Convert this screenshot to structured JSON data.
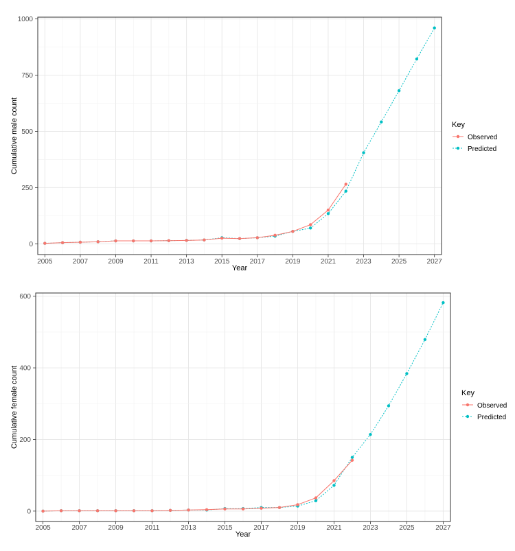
{
  "chart_data": [
    {
      "type": "line",
      "xlabel": "Year",
      "ylabel": "Cumulative male count",
      "xlim": [
        2004.6,
        2027.4
      ],
      "ylim": [
        -48,
        1008
      ],
      "x_ticks": [
        2005,
        2007,
        2009,
        2011,
        2013,
        2015,
        2017,
        2019,
        2021,
        2023,
        2025,
        2027
      ],
      "y_ticks": [
        0,
        250,
        500,
        750,
        1000
      ],
      "grid": true,
      "legend": {
        "title": "Key",
        "position": "right"
      },
      "series": [
        {
          "name": "Observed",
          "color": "#f8766d",
          "line_style": "solid",
          "x": [
            2005,
            2006,
            2007,
            2008,
            2009,
            2010,
            2011,
            2012,
            2013,
            2014,
            2015,
            2016,
            2017,
            2018,
            2019,
            2020,
            2021,
            2022
          ],
          "y": [
            2,
            5,
            7,
            9,
            13,
            13,
            13,
            14,
            15,
            17,
            25,
            23,
            27,
            38,
            55,
            85,
            150,
            265
          ]
        },
        {
          "name": "Predicted",
          "color": "#00bfc4",
          "line_style": "dotted",
          "x": [
            2005,
            2006,
            2007,
            2008,
            2009,
            2010,
            2011,
            2012,
            2013,
            2014,
            2015,
            2016,
            2017,
            2018,
            2019,
            2020,
            2021,
            2022,
            2023,
            2024,
            2025,
            2026,
            2027
          ],
          "y": [
            2,
            5,
            7,
            9,
            13,
            13,
            13,
            14,
            15,
            17,
            27,
            23,
            27,
            34,
            55,
            70,
            134,
            234,
            405,
            542,
            681,
            822,
            960
          ]
        }
      ]
    },
    {
      "type": "line",
      "xlabel": "Year",
      "ylabel": "Cumulative female count",
      "xlim": [
        2004.6,
        2027.4
      ],
      "ylim": [
        -29,
        609
      ],
      "x_ticks": [
        2005,
        2007,
        2009,
        2011,
        2013,
        2015,
        2017,
        2019,
        2021,
        2023,
        2025,
        2027
      ],
      "y_ticks": [
        0,
        200,
        400,
        600
      ],
      "grid": true,
      "legend": {
        "title": "Key",
        "position": "right"
      },
      "series": [
        {
          "name": "Observed",
          "color": "#f8766d",
          "line_style": "solid",
          "x": [
            2005,
            2006,
            2007,
            2008,
            2009,
            2010,
            2011,
            2012,
            2013,
            2014,
            2015,
            2016,
            2017,
            2018,
            2019,
            2020,
            2021,
            2022
          ],
          "y": [
            0,
            1,
            1,
            1,
            1,
            1,
            1,
            2,
            3,
            4,
            6,
            6,
            8,
            10,
            18,
            37,
            85,
            142
          ]
        },
        {
          "name": "Predicted",
          "color": "#00bfc4",
          "line_style": "dotted",
          "x": [
            2005,
            2006,
            2007,
            2008,
            2009,
            2010,
            2011,
            2012,
            2013,
            2014,
            2015,
            2016,
            2017,
            2018,
            2019,
            2020,
            2021,
            2022,
            2023,
            2024,
            2025,
            2026,
            2027
          ],
          "y": [
            0,
            1,
            1,
            1,
            1,
            1,
            1,
            2,
            3,
            3,
            7,
            7,
            10,
            10,
            14,
            29,
            72,
            150,
            214,
            294,
            384,
            479,
            582
          ]
        }
      ]
    }
  ]
}
